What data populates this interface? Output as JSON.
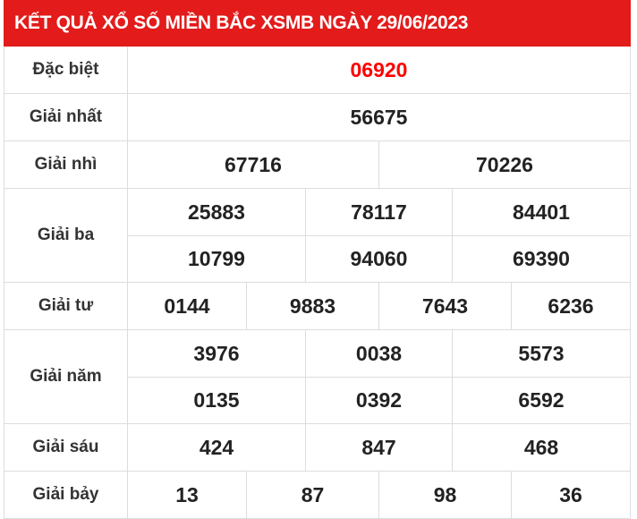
{
  "title": "KẾT QUẢ XỔ SỐ MIỀN BẮC XSMB NGÀY 29/06/2023",
  "prizes": [
    {
      "label": "Đặc biệt",
      "rows": [
        [
          "06920"
        ]
      ],
      "special": true
    },
    {
      "label": "Giải nhất",
      "rows": [
        [
          "56675"
        ]
      ]
    },
    {
      "label": "Giải nhì",
      "rows": [
        [
          "67716",
          "70226"
        ]
      ]
    },
    {
      "label": "Giải ba",
      "rows": [
        [
          "25883",
          "78117",
          "84401"
        ],
        [
          "10799",
          "94060",
          "69390"
        ]
      ]
    },
    {
      "label": "Giải tư",
      "rows": [
        [
          "0144",
          "9883",
          "7643",
          "6236"
        ]
      ]
    },
    {
      "label": "Giải năm",
      "rows": [
        [
          "3976",
          "0038",
          "5573"
        ],
        [
          "0135",
          "0392",
          "6592"
        ]
      ]
    },
    {
      "label": "Giải sáu",
      "rows": [
        [
          "424",
          "847",
          "468"
        ]
      ]
    },
    {
      "label": "Giải bảy",
      "rows": [
        [
          "13",
          "87",
          "98",
          "36"
        ]
      ]
    }
  ],
  "colors": {
    "header": "#e31b1b",
    "special": "#ff0000"
  }
}
